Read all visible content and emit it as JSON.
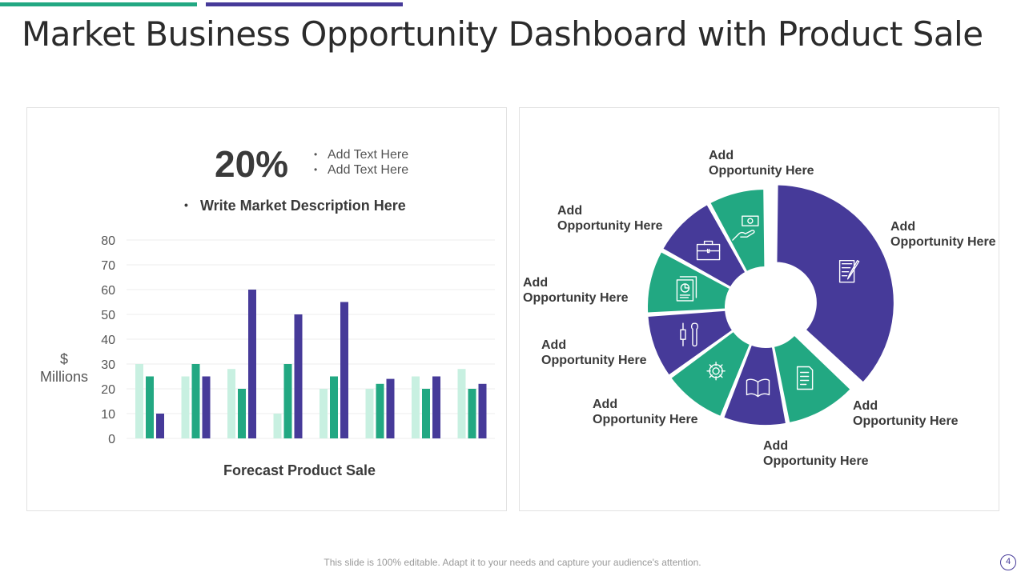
{
  "title": "Market Business Opportunity Dashboard with Product Sale",
  "colors": {
    "green": "#22a882",
    "purple": "#463a99",
    "light_mint": "#c8f0e1"
  },
  "summary": {
    "percent": "20%",
    "bullets": [
      "Add Text Here",
      "Add Text Here"
    ],
    "description": "Write Market Description Here"
  },
  "chart_data": [
    {
      "type": "bar",
      "categories": [
        "",
        "",
        "",
        "",
        "",
        "",
        "",
        ""
      ],
      "series": [
        {
          "values": [
            30,
            25,
            28,
            10,
            20,
            20,
            25,
            28
          ]
        },
        {
          "values": [
            25,
            30,
            20,
            30,
            25,
            22,
            20,
            20
          ]
        },
        {
          "values": [
            10,
            25,
            60,
            50,
            55,
            24,
            25,
            22
          ]
        }
      ],
      "ylim": [
        0,
        80
      ],
      "yticks": [
        "0",
        "10",
        "20",
        "30",
        "40",
        "50",
        "60",
        "70",
        "80"
      ],
      "ylabel": [
        "$",
        "Millions"
      ],
      "xlabel": "Forecast Product Sale",
      "grid": true
    },
    {
      "type": "pie",
      "donut": true,
      "segments": [
        {
          "label": "Add Opportunity Here",
          "value": 37,
          "color": "#463a99",
          "icon": "notepad-pen-icon"
        },
        {
          "label": "Add Opportunity Here",
          "value": 10,
          "color": "#22a882",
          "icon": "document-list-icon"
        },
        {
          "label": "Add Opportunity Here",
          "value": 9,
          "color": "#463a99",
          "icon": "open-book-icon"
        },
        {
          "label": "Add Opportunity Here",
          "value": 9,
          "color": "#22a882",
          "icon": "gear-icon"
        },
        {
          "label": "Add Opportunity Here",
          "value": 9,
          "color": "#463a99",
          "icon": "tools-icon"
        },
        {
          "label": "Add Opportunity Here",
          "value": 9,
          "color": "#22a882",
          "icon": "report-chart-icon"
        },
        {
          "label": "Add Opportunity Here",
          "value": 9,
          "color": "#463a99",
          "icon": "briefcase-icon"
        },
        {
          "label": "Add Opportunity Here",
          "value": 8,
          "color": "#22a882",
          "icon": "cash-hand-icon"
        }
      ]
    }
  ],
  "footer": {
    "note": "This slide is 100% editable. Adapt it to your needs and capture your audience's attention.",
    "page": "4"
  }
}
